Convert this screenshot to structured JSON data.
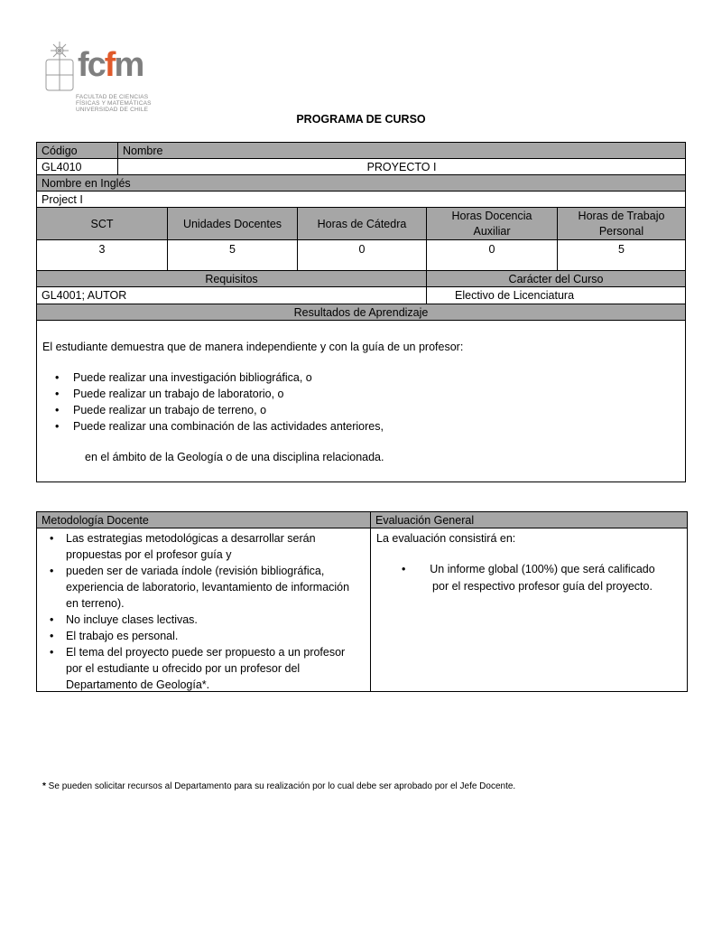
{
  "logo": {
    "wordmark": "fcfm",
    "line1": "FACULTAD DE CIENCIAS",
    "line2": "FÍSICAS Y MATEMÁTICAS",
    "line3": "UNIVERSIDAD DE CHILE",
    "accent": "#e05a2b",
    "gray": "#7f7f7f"
  },
  "title": "PROGRAMA DE CURSO",
  "table1": {
    "codigo_label": "Código",
    "nombre_label": "Nombre",
    "codigo": "GL4010",
    "nombre": "PROYECTO I",
    "ingles_label": "Nombre en Inglés",
    "ingles": "Project I",
    "headers": [
      "SCT",
      "Unidades Docentes",
      "Horas de Cátedra",
      "Horas Docencia Auxiliar",
      "Horas de Trabajo Personal"
    ],
    "values": [
      "3",
      "5",
      "0",
      "0",
      "5"
    ],
    "requisitos_label": "Requisitos",
    "caracter_label": "Carácter del Curso",
    "requisitos": "GL4001; AUTOR",
    "caracter": "Electivo de Licenciatura",
    "resultados_label": "Resultados de Aprendizaje",
    "resultados_intro": "El estudiante demuestra que de manera independiente y con la guía de un profesor:",
    "resultados_items": [
      "Puede realizar una investigación bibliográfica, o",
      "Puede realizar un trabajo de laboratorio, o",
      "Puede realizar un trabajo de terreno, o",
      "Puede realizar una combinación de las actividades anteriores,"
    ],
    "resultados_outro": "en el ámbito de la Geología o de una disciplina relacionada."
  },
  "table2": {
    "metodologia_label": "Metodología Docente",
    "evaluacion_label": "Evaluación General",
    "metodologia_items": [
      "Las estrategias metodológicas a desarrollar serán propuestas por el profesor guía y",
      "pueden ser de variada índole (revisión bibliográfica, experiencia de laboratorio, levantamiento de información en terreno).",
      "No incluye clases lectivas.",
      "El trabajo es personal.",
      "El tema del proyecto puede ser propuesto a un profesor por el estudiante u ofrecido por un profesor del Departamento de Geología*."
    ],
    "evaluacion_intro": "La evaluación consistirá en:",
    "evaluacion_item": "Un informe global (100%) que será calificado por el respectivo profesor guía del proyecto."
  },
  "footnote_mark": "*",
  "footnote": " Se pueden solicitar recursos al Departamento para su realización por lo cual debe ser aprobado por el Jefe Docente.",
  "colors": {
    "header_fill": "#a6a6a6"
  }
}
